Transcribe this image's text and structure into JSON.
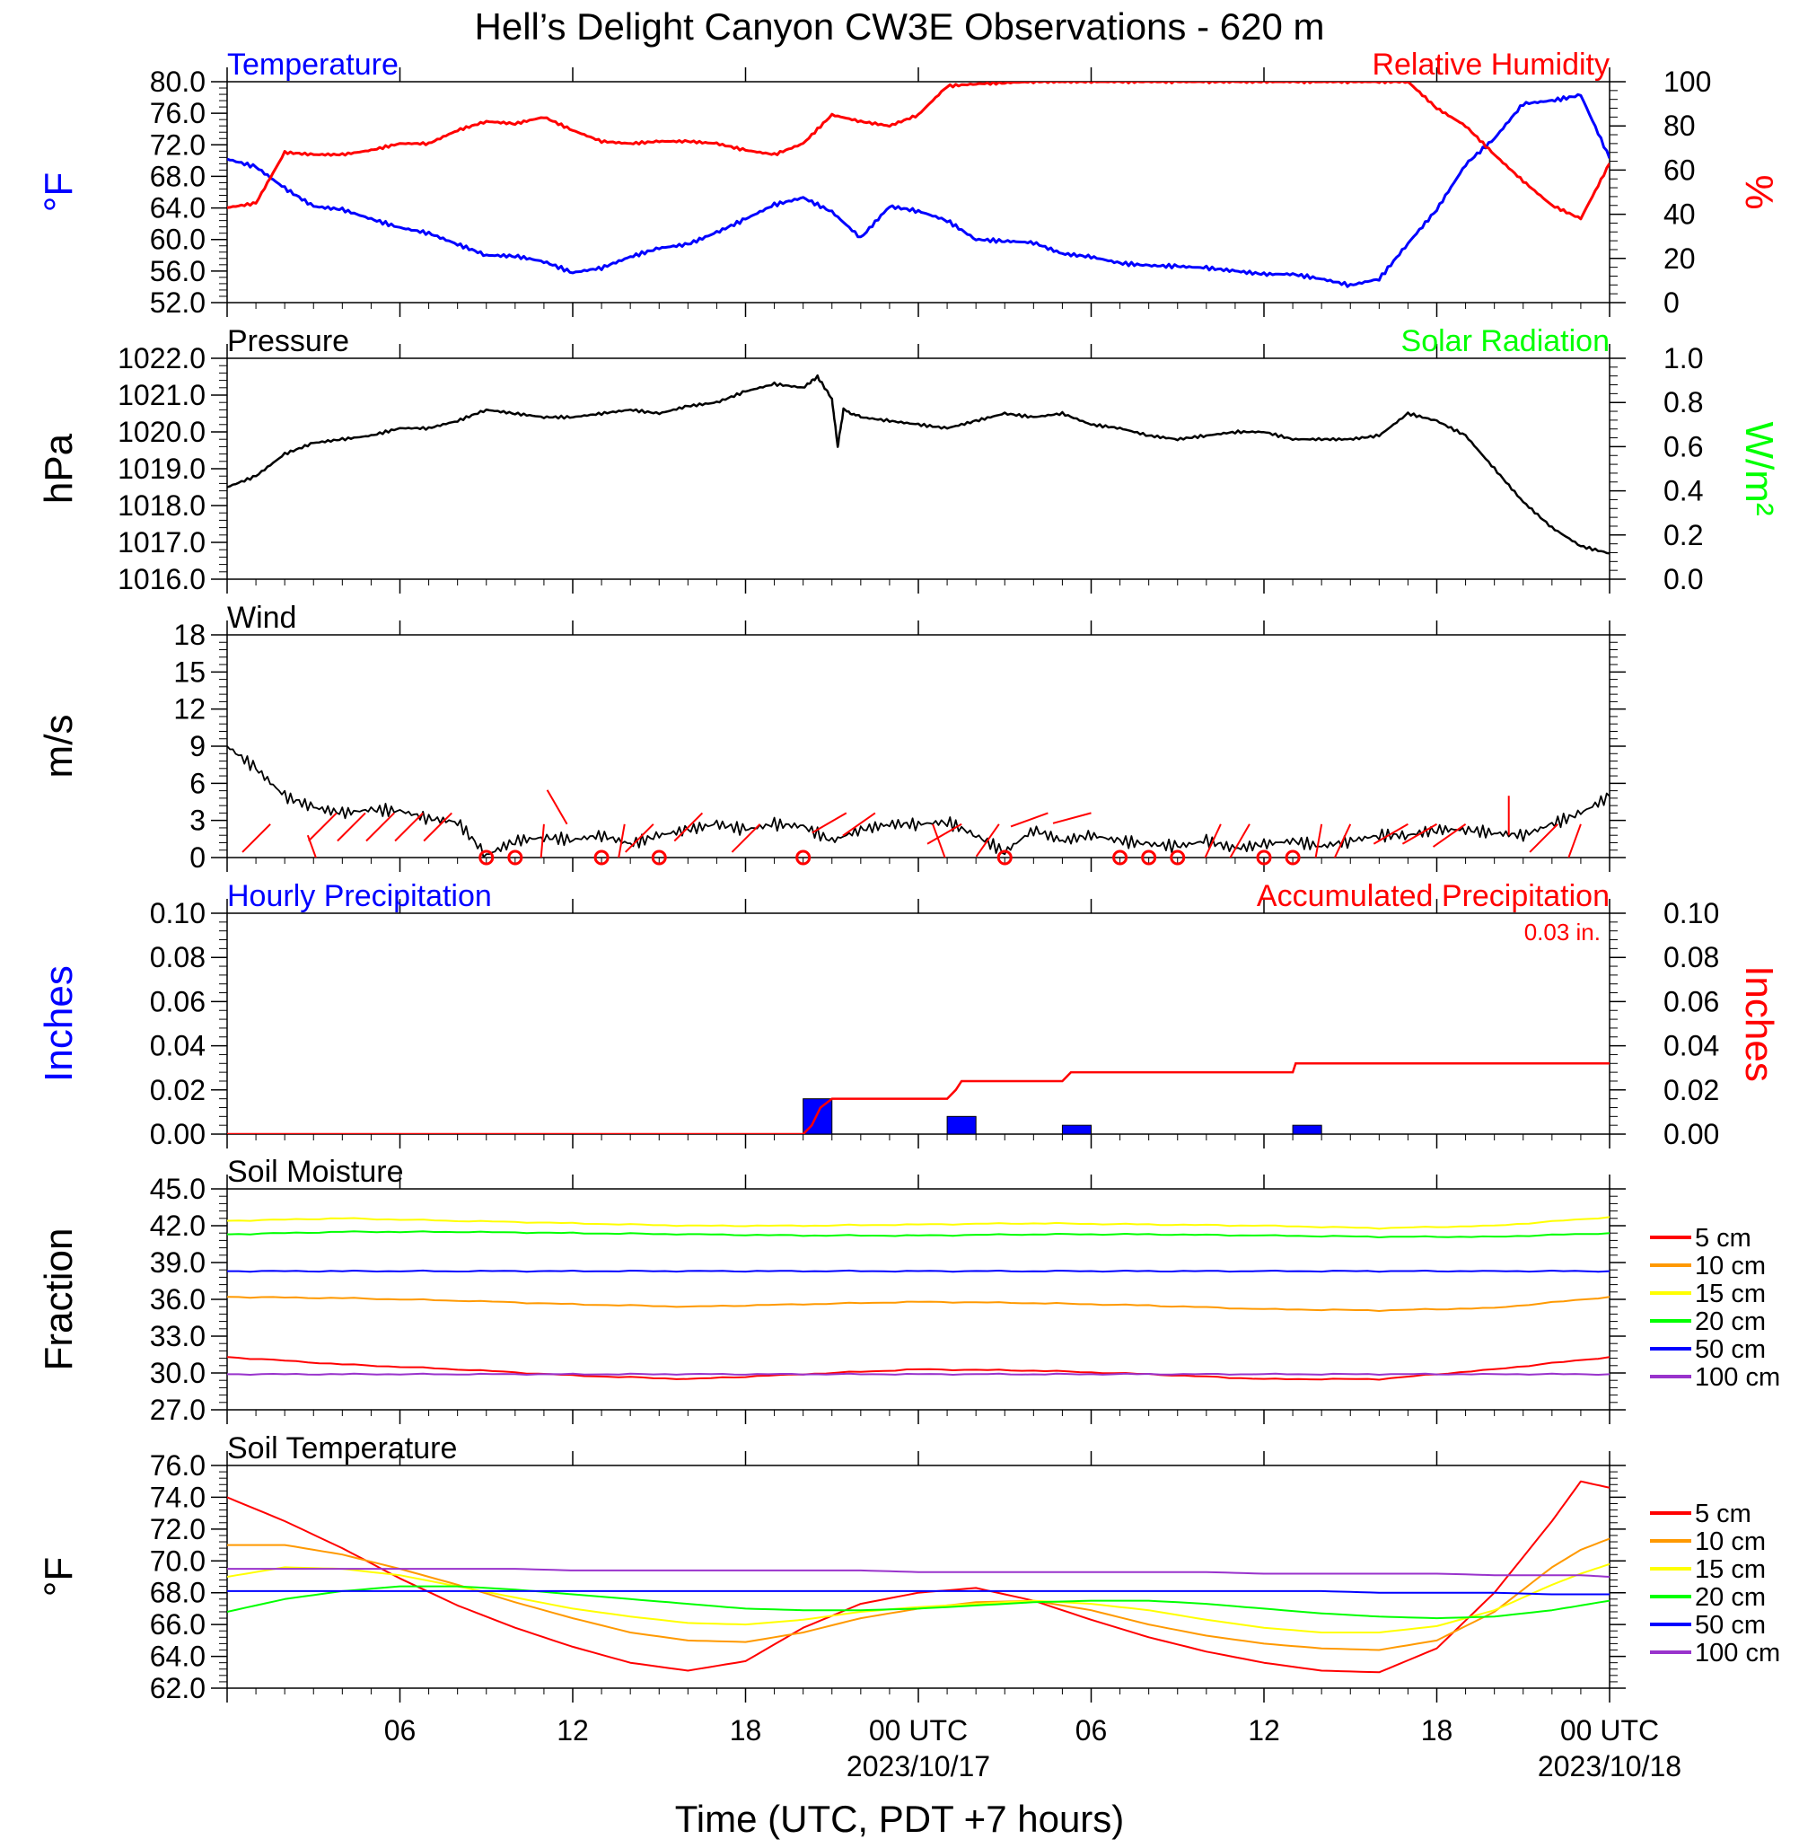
{
  "title": "Hell’s Delight Canyon CW3E Observations - 620 m",
  "xaxis": {
    "label": "Time (UTC, PDT +7 hours)",
    "ticks": [
      "06",
      "12",
      "18",
      "00 UTC",
      "06",
      "12",
      "18",
      "00 UTC"
    ],
    "dates": [
      "2023/10/17",
      "2023/10/18"
    ]
  },
  "colors": {
    "blue": "#0000ff",
    "red": "#ff0000",
    "green": "#00ff00",
    "black": "#000000",
    "orange": "#ff9900",
    "yellow": "#ffff00",
    "purple": "#9933cc"
  },
  "chart_data": [
    {
      "type": "line",
      "name": "temp_rh",
      "title_left": "Temperature",
      "title_right": "Relative Humidity",
      "ylabel_left": "°F",
      "ylabel_right": "%",
      "ylim_left": [
        52,
        80
      ],
      "ylim_right": [
        0,
        100
      ],
      "yticks_left": [
        "80.0",
        "76.0",
        "72.0",
        "68.0",
        "64.0",
        "60.0",
        "56.0",
        "52.0"
      ],
      "yticks_right": [
        "100",
        "80",
        "60",
        "40",
        "20",
        "0"
      ],
      "x_hours": [
        0,
        1,
        2,
        3,
        4,
        5,
        6,
        7,
        8,
        9,
        10,
        11,
        12,
        13,
        14,
        15,
        16,
        17,
        18,
        19,
        20,
        21,
        22,
        23,
        24,
        25,
        26,
        27,
        28,
        29,
        30,
        31,
        32,
        33,
        34,
        35,
        36,
        37,
        38,
        39,
        40,
        41,
        42,
        43,
        44,
        45,
        46,
        47,
        48
      ],
      "series": [
        {
          "name": "Temperature",
          "axis": "left",
          "color": "blue",
          "values": [
            70.2,
            69.2,
            66.5,
            64.2,
            63.8,
            62.6,
            61.5,
            60.8,
            59.4,
            58.0,
            57.9,
            57.2,
            55.8,
            56.4,
            57.8,
            58.9,
            59.4,
            60.9,
            62.6,
            64.4,
            65.3,
            63.5,
            60.2,
            64.2,
            63.6,
            62.4,
            60.0,
            59.8,
            59.6,
            58.2,
            57.8,
            57.0,
            56.7,
            56.6,
            56.4,
            56.0,
            55.6,
            55.6,
            55.0,
            54.2,
            55.0,
            59.5,
            63.8,
            69.5,
            72.8,
            77.2,
            77.6,
            78.3,
            70.3
          ]
        },
        {
          "name": "Relative Humidity",
          "axis": "right",
          "color": "red",
          "values": [
            43,
            45,
            68,
            67,
            67,
            69,
            72,
            72,
            78,
            82,
            81,
            84,
            78,
            73,
            72,
            73,
            73,
            72,
            69,
            67,
            72,
            85,
            82,
            80,
            85,
            98,
            99,
            99.5,
            100,
            100,
            100,
            100,
            100,
            100,
            100,
            100,
            100,
            100,
            100,
            100,
            100,
            100,
            88,
            80,
            67,
            55,
            44,
            38,
            63
          ]
        }
      ]
    },
    {
      "type": "line",
      "name": "pressure",
      "title_left": "Pressure",
      "title_right": "Solar Radiation",
      "ylabel_left": "hPa",
      "ylabel_right": "W/m²",
      "ylim_left": [
        1016,
        1022
      ],
      "ylim_right": [
        0,
        1
      ],
      "yticks_left": [
        "1022.0",
        "1021.0",
        "1020.0",
        "1019.0",
        "1018.0",
        "1017.0",
        "1016.0"
      ],
      "yticks_right": [
        "1.0",
        "0.8",
        "0.6",
        "0.4",
        "0.2",
        "0.0"
      ],
      "x_hours": [
        0,
        1,
        2,
        3,
        4,
        5,
        6,
        7,
        8,
        9,
        10,
        11,
        12,
        13,
        14,
        15,
        16,
        17,
        18,
        19,
        20,
        20.5,
        21,
        21.2,
        21.4,
        22,
        23,
        24,
        25,
        26,
        27,
        28,
        29,
        30,
        31,
        32,
        33,
        34,
        35,
        36,
        37,
        38,
        39,
        40,
        41,
        42,
        43,
        44,
        45,
        46,
        47,
        48
      ],
      "series": [
        {
          "name": "Pressure",
          "axis": "left",
          "color": "black",
          "values": [
            1018.5,
            1018.8,
            1019.4,
            1019.7,
            1019.8,
            1019.9,
            1020.1,
            1020.1,
            1020.3,
            1020.6,
            1020.5,
            1020.4,
            1020.4,
            1020.5,
            1020.6,
            1020.5,
            1020.7,
            1020.8,
            1021.1,
            1021.3,
            1021.2,
            1021.5,
            1020.9,
            1019.6,
            1020.6,
            1020.4,
            1020.3,
            1020.2,
            1020.1,
            1020.3,
            1020.5,
            1020.4,
            1020.5,
            1020.2,
            1020.1,
            1019.9,
            1019.8,
            1019.9,
            1020.0,
            1020.0,
            1019.8,
            1019.8,
            1019.8,
            1019.9,
            1020.5,
            1020.3,
            1019.9,
            1019.0,
            1018.1,
            1017.4,
            1016.9,
            1016.7
          ]
        }
      ]
    },
    {
      "type": "line",
      "name": "wind",
      "title_left": "Wind",
      "ylabel_left": "m/s",
      "ylim_left": [
        0,
        20
      ],
      "yticks_left": [
        "18",
        "15",
        "12",
        "9",
        "6",
        "3",
        "0"
      ],
      "x_hours": [
        0,
        1,
        2,
        3,
        4,
        5,
        6,
        7,
        8,
        9,
        10,
        11,
        12,
        13,
        14,
        15,
        16,
        17,
        18,
        19,
        20,
        21,
        22,
        23,
        24,
        25,
        26,
        27,
        28,
        29,
        30,
        31,
        32,
        33,
        34,
        35,
        36,
        37,
        38,
        39,
        40,
        41,
        42,
        43,
        44,
        45,
        46,
        47,
        48
      ],
      "series": [
        {
          "name": "Wind Speed",
          "axis": "left",
          "color": "black",
          "values": [
            10,
            8,
            5.5,
            4.5,
            4,
            4.3,
            4.2,
            3.5,
            3.2,
            0.2,
            1.5,
            1.8,
            1.6,
            2.0,
            1.2,
            2.0,
            2.5,
            3.0,
            2.5,
            3.0,
            2.8,
            1.5,
            2.5,
            3.0,
            3.0,
            3.2,
            2.0,
            0.5,
            2.5,
            1.5,
            2.0,
            1.5,
            1.2,
            1.0,
            1.5,
            0.8,
            1.2,
            1.5,
            1.0,
            1.5,
            2.0,
            2.0,
            2.5,
            2.5,
            2.2,
            2.0,
            3.0,
            4.0,
            5.5
          ]
        }
      ],
      "barbs": [
        {
          "h": 1.5,
          "s": 3,
          "dir": 225
        },
        {
          "h": 2.8,
          "s": 2,
          "dir": 160
        },
        {
          "h": 3.8,
          "s": 4,
          "dir": 225
        },
        {
          "h": 4.8,
          "s": 4,
          "dir": 225
        },
        {
          "h": 5.8,
          "s": 4,
          "dir": 225
        },
        {
          "h": 6.8,
          "s": 4,
          "dir": 225
        },
        {
          "h": 7.8,
          "s": 4,
          "dir": 225
        },
        {
          "h": 11.0,
          "s": 3,
          "dir": 185
        },
        {
          "h": 11.8,
          "s": 3,
          "dir": 330
        },
        {
          "h": 13.8,
          "s": 3,
          "dir": 190
        },
        {
          "h": 14.8,
          "s": 3,
          "dir": 225
        },
        {
          "h": 16.5,
          "s": 4,
          "dir": 225
        },
        {
          "h": 18.5,
          "s": 3,
          "dir": 225
        },
        {
          "h": 21.5,
          "s": 4,
          "dir": 240
        },
        {
          "h": 22.5,
          "s": 4,
          "dir": 235
        },
        {
          "h": 24.5,
          "s": 3,
          "dir": 160
        },
        {
          "h": 25.5,
          "s": 3,
          "dir": 240
        },
        {
          "h": 26.8,
          "s": 3,
          "dir": 215
        },
        {
          "h": 28.5,
          "s": 4,
          "dir": 250
        },
        {
          "h": 30.0,
          "s": 4,
          "dir": 255
        },
        {
          "h": 34.5,
          "s": 3,
          "dir": 205
        },
        {
          "h": 35.5,
          "s": 3,
          "dir": 210
        },
        {
          "h": 38.0,
          "s": 3,
          "dir": 190
        },
        {
          "h": 39.0,
          "s": 3,
          "dir": 205
        },
        {
          "h": 41.0,
          "s": 3,
          "dir": 240
        },
        {
          "h": 42.0,
          "s": 3,
          "dir": 240
        },
        {
          "h": 43.0,
          "s": 3,
          "dir": 235
        },
        {
          "h": 44.5,
          "s": 2,
          "dir": 0
        },
        {
          "h": 46.2,
          "s": 3,
          "dir": 225
        },
        {
          "h": 47.0,
          "s": 3,
          "dir": 200
        }
      ],
      "calm_hours": [
        9,
        10,
        13,
        15,
        20,
        27,
        31,
        32,
        33,
        36,
        37
      ]
    },
    {
      "type": "bar",
      "name": "precip",
      "title_left": "Hourly Precipitation",
      "title_right": "Accumulated Precipitation",
      "annotation": "0.03 in.",
      "ylabel_left": "Inches",
      "ylabel_right": "Inches",
      "ylim_left": [
        0,
        0.1
      ],
      "ylim_right": [
        0,
        0.1
      ],
      "yticks_left": [
        "0.10",
        "0.08",
        "0.06",
        "0.04",
        "0.02",
        "0.00"
      ],
      "yticks_right": [
        "0.10",
        "0.08",
        "0.06",
        "0.04",
        "0.02",
        "0.00"
      ],
      "bars": [
        {
          "h": 20.5,
          "value": 0.016
        },
        {
          "h": 25.5,
          "value": 0.008
        },
        {
          "h": 29.5,
          "value": 0.004
        },
        {
          "h": 37.5,
          "value": 0.004
        }
      ],
      "accum_x": [
        0,
        20.0,
        20.3,
        20.6,
        21.0,
        25.0,
        25.3,
        25.5,
        29.0,
        29.3,
        37.0,
        37.1,
        48
      ],
      "accum_y": [
        0,
        0,
        0.004,
        0.012,
        0.016,
        0.016,
        0.02,
        0.024,
        0.024,
        0.028,
        0.028,
        0.032,
        0.032
      ]
    },
    {
      "type": "line",
      "name": "soil_moisture",
      "title_left": "Soil Moisture",
      "ylabel_left": "Fraction",
      "ylim_left": [
        27,
        45
      ],
      "yticks_left": [
        "45.0",
        "42.0",
        "39.0",
        "36.0",
        "33.0",
        "30.0",
        "27.0"
      ],
      "x_hours": [
        0,
        4,
        8,
        12,
        16,
        20,
        24,
        28,
        32,
        36,
        40,
        44,
        48
      ],
      "series": [
        {
          "name": "5 cm",
          "color": "red",
          "values": [
            31.3,
            30.7,
            30.3,
            29.8,
            29.5,
            29.9,
            30.3,
            30.2,
            29.9,
            29.5,
            29.5,
            30.3,
            31.3
          ]
        },
        {
          "name": "10 cm",
          "color": "orange",
          "values": [
            36.2,
            36.1,
            35.9,
            35.6,
            35.4,
            35.6,
            35.8,
            35.7,
            35.5,
            35.2,
            35.1,
            35.3,
            36.2
          ]
        },
        {
          "name": "15 cm",
          "color": "yellow",
          "values": [
            42.4,
            42.6,
            42.4,
            42.2,
            42.0,
            42.0,
            42.1,
            42.2,
            42.1,
            42.0,
            41.8,
            42.0,
            42.7
          ]
        },
        {
          "name": "20 cm",
          "color": "green",
          "values": [
            41.3,
            41.5,
            41.5,
            41.4,
            41.3,
            41.2,
            41.2,
            41.3,
            41.3,
            41.2,
            41.1,
            41.1,
            41.4
          ]
        },
        {
          "name": "50 cm",
          "color": "blue",
          "values": [
            38.3,
            38.3,
            38.3,
            38.3,
            38.3,
            38.3,
            38.3,
            38.3,
            38.3,
            38.3,
            38.3,
            38.3,
            38.3
          ]
        },
        {
          "name": "100 cm",
          "color": "purple",
          "values": [
            29.9,
            29.9,
            29.9,
            29.9,
            29.9,
            29.9,
            29.9,
            29.9,
            29.9,
            29.9,
            29.9,
            29.9,
            29.9
          ]
        }
      ],
      "legend": [
        "5 cm",
        "10 cm",
        "15 cm",
        "20 cm",
        "50 cm",
        "100 cm"
      ]
    },
    {
      "type": "line",
      "name": "soil_temp",
      "title_left": "Soil Temperature",
      "ylabel_left": "°F",
      "ylim_left": [
        62,
        76
      ],
      "yticks_left": [
        "76.0",
        "74.0",
        "72.0",
        "70.0",
        "68.0",
        "66.0",
        "64.0",
        "62.0"
      ],
      "x_hours": [
        0,
        2,
        4,
        6,
        8,
        10,
        12,
        14,
        16,
        18,
        20,
        22,
        24,
        26,
        28,
        30,
        32,
        34,
        36,
        38,
        40,
        42,
        44,
        46,
        47,
        48
      ],
      "series": [
        {
          "name": "5 cm",
          "color": "red",
          "values": [
            74.0,
            72.5,
            70.8,
            68.9,
            67.2,
            65.8,
            64.6,
            63.6,
            63.1,
            63.7,
            65.8,
            67.3,
            68.0,
            68.3,
            67.5,
            66.3,
            65.2,
            64.3,
            63.6,
            63.1,
            63.0,
            64.5,
            68.0,
            72.5,
            75.0,
            74.6
          ]
        },
        {
          "name": "10 cm",
          "color": "orange",
          "values": [
            71.0,
            71.0,
            70.4,
            69.5,
            68.5,
            67.4,
            66.4,
            65.5,
            65.0,
            64.9,
            65.5,
            66.4,
            67.0,
            67.4,
            67.5,
            66.9,
            66.0,
            65.3,
            64.8,
            64.5,
            64.4,
            65.0,
            66.8,
            69.6,
            70.7,
            71.4
          ]
        },
        {
          "name": "15 cm",
          "color": "yellow",
          "values": [
            69.0,
            69.6,
            69.5,
            69.1,
            68.4,
            67.7,
            67.0,
            66.5,
            66.1,
            66.0,
            66.3,
            66.8,
            67.1,
            67.3,
            67.5,
            67.3,
            66.9,
            66.3,
            65.8,
            65.5,
            65.5,
            65.9,
            66.9,
            68.5,
            69.2,
            69.8
          ]
        },
        {
          "name": "20 cm",
          "color": "green",
          "values": [
            66.8,
            67.6,
            68.1,
            68.4,
            68.4,
            68.2,
            67.9,
            67.6,
            67.3,
            67.0,
            66.9,
            66.9,
            67.0,
            67.2,
            67.4,
            67.5,
            67.5,
            67.3,
            67.0,
            66.7,
            66.5,
            66.4,
            66.5,
            66.9,
            67.2,
            67.5
          ]
        },
        {
          "name": "50 cm",
          "color": "blue",
          "values": [
            68.1,
            68.1,
            68.1,
            68.1,
            68.1,
            68.1,
            68.1,
            68.1,
            68.1,
            68.1,
            68.1,
            68.1,
            68.1,
            68.1,
            68.1,
            68.1,
            68.1,
            68.1,
            68.1,
            68.1,
            68.0,
            68.0,
            68.0,
            67.9,
            67.9,
            67.9
          ]
        },
        {
          "name": "100 cm",
          "color": "purple",
          "values": [
            69.5,
            69.5,
            69.5,
            69.5,
            69.5,
            69.5,
            69.4,
            69.4,
            69.4,
            69.4,
            69.4,
            69.4,
            69.3,
            69.3,
            69.3,
            69.3,
            69.3,
            69.3,
            69.2,
            69.2,
            69.2,
            69.2,
            69.1,
            69.1,
            69.1,
            69.0
          ]
        }
      ],
      "legend": [
        "5 cm",
        "10 cm",
        "15 cm",
        "20 cm",
        "50 cm",
        "100 cm"
      ]
    }
  ]
}
